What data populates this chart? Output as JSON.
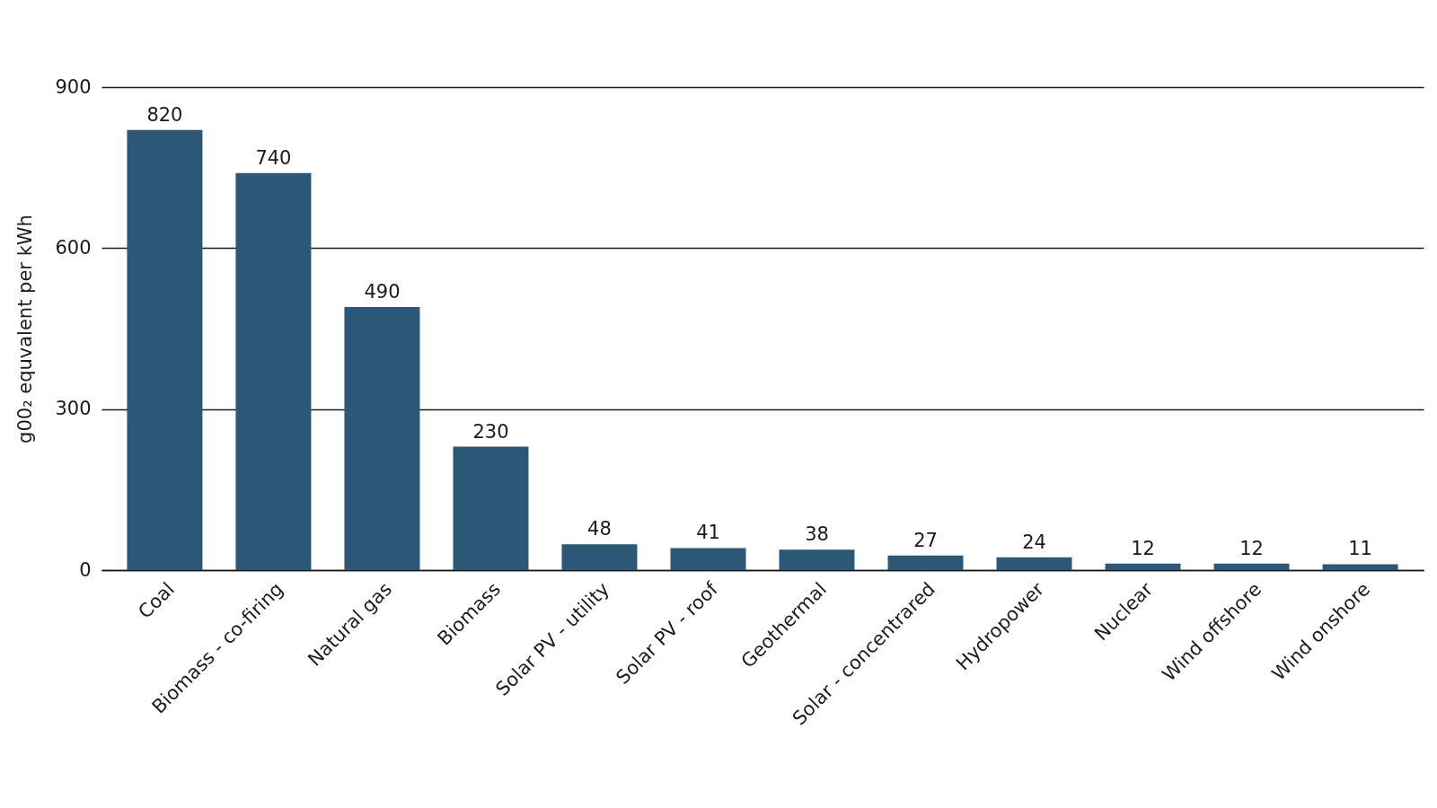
{
  "chart_data": {
    "type": "bar",
    "ylabel": "g00₂ equvalent per kWh",
    "categories": [
      "Coal",
      "Biomass - co-firing",
      "Natural gas",
      "Biomass",
      "Solar PV - utility",
      "Solar PV - roof",
      "Geothermal",
      "Solar - concentrared",
      "Hydropower",
      "Nuclear",
      "Wind offshore",
      "Wind onshore"
    ],
    "values": [
      820,
      740,
      490,
      230,
      48,
      41,
      38,
      27,
      24,
      12,
      12,
      11
    ],
    "color": "#2c5777",
    "ylim": [
      0,
      900
    ],
    "yticks": [
      0,
      300,
      600,
      900
    ],
    "grid": "y",
    "data_labels": true
  }
}
